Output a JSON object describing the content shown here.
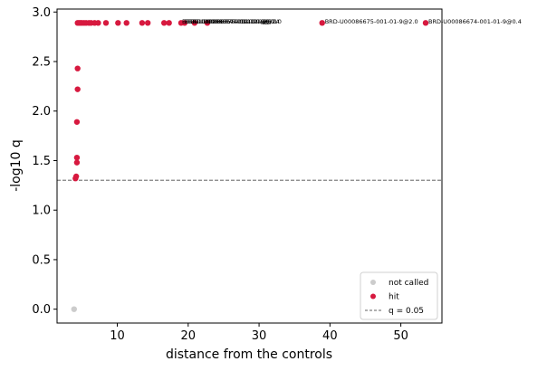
{
  "chart_data": {
    "type": "scatter",
    "xlabel": "distance from the controls",
    "ylabel": "-log10 q",
    "xlim": [
      1.5,
      55.8
    ],
    "ylim": [
      -0.14,
      3.03
    ],
    "xticks": [
      10,
      20,
      30,
      40,
      50
    ],
    "yticks": [
      0.0,
      0.5,
      1.0,
      1.5,
      2.0,
      2.5,
      3.0
    ],
    "xtick_labels": [
      "10",
      "20",
      "30",
      "40",
      "50"
    ],
    "ytick_labels": [
      "0.0",
      "0.5",
      "1.0",
      "1.5",
      "2.0",
      "2.5",
      "3.0"
    ],
    "threshold": {
      "y": 1.301,
      "label": "q = 0.05",
      "color": "#808080"
    },
    "legend": {
      "placement": "lower-right",
      "entries": [
        {
          "label": "not called",
          "color": "#cccccc",
          "kind": "point"
        },
        {
          "label": "hit",
          "color": "#d7193f",
          "kind": "point"
        },
        {
          "label": "q = 0.05",
          "color": "#808080",
          "kind": "dashed-line"
        }
      ]
    },
    "series": [
      {
        "name": "not called",
        "color": "#cccccc",
        "points": [
          {
            "x": 3.9,
            "y": 0.0
          }
        ]
      },
      {
        "name": "hit",
        "color": "#d7193f",
        "points": [
          {
            "x": 4.1,
            "y": 1.32
          },
          {
            "x": 4.2,
            "y": 1.34
          },
          {
            "x": 4.3,
            "y": 1.48
          },
          {
            "x": 4.3,
            "y": 1.53
          },
          {
            "x": 4.3,
            "y": 1.89
          },
          {
            "x": 4.4,
            "y": 2.22
          },
          {
            "x": 4.4,
            "y": 2.43
          },
          {
            "x": 4.4,
            "y": 2.89
          },
          {
            "x": 4.6,
            "y": 2.89
          },
          {
            "x": 4.8,
            "y": 2.89
          },
          {
            "x": 5.0,
            "y": 2.89
          },
          {
            "x": 5.3,
            "y": 2.89
          },
          {
            "x": 5.6,
            "y": 2.89
          },
          {
            "x": 6.0,
            "y": 2.89
          },
          {
            "x": 6.3,
            "y": 2.89
          },
          {
            "x": 6.8,
            "y": 2.89
          },
          {
            "x": 7.3,
            "y": 2.89
          },
          {
            "x": 8.4,
            "y": 2.89
          },
          {
            "x": 10.1,
            "y": 2.89
          },
          {
            "x": 11.3,
            "y": 2.89
          },
          {
            "x": 13.5,
            "y": 2.89
          },
          {
            "x": 14.3,
            "y": 2.89
          },
          {
            "x": 16.6,
            "y": 2.89
          },
          {
            "x": 17.3,
            "y": 2.89
          },
          {
            "x": 19.0,
            "y": 2.89
          },
          {
            "x": 19.5,
            "y": 2.89
          },
          {
            "x": 20.9,
            "y": 2.89
          },
          {
            "x": 22.7,
            "y": 2.89
          },
          {
            "x": 38.9,
            "y": 2.89
          },
          {
            "x": 53.5,
            "y": 2.89
          }
        ]
      }
    ],
    "annotations": [
      {
        "text": "BRD-U00086675-001-01-9@2.0",
        "x": 38.9,
        "y": 2.89
      },
      {
        "text": "BRD-U00086674-001-01-9@0.4",
        "x": 53.5,
        "y": 2.89
      }
    ],
    "overlapping_annotations": [
      {
        "text": "BRD-U00086675-001-01-9@0.1",
        "x": 19.0,
        "y": 2.89
      },
      {
        "text": "BRD-U00086674-001-01-9@0.1",
        "x": 19.3,
        "y": 2.89
      },
      {
        "text": "BRD-U00086675-001-01-9@0.4",
        "x": 19.6,
        "y": 2.89
      },
      {
        "text": "BRD-U00086674-001-01-9@2.0",
        "x": 19.9,
        "y": 2.89
      }
    ]
  }
}
